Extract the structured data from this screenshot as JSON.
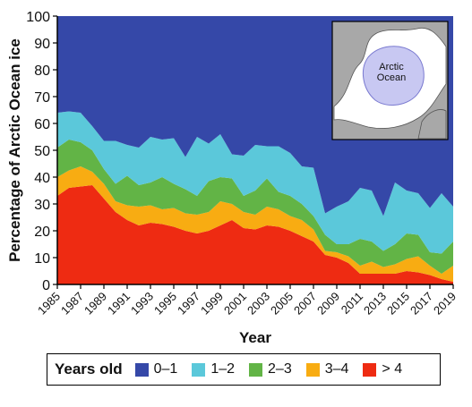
{
  "chart_data": {
    "type": "area",
    "stacked": true,
    "title": "",
    "xlabel": "Year",
    "ylabel": "Percentage of Arctic Ocean ice",
    "xlim": [
      1985,
      2019
    ],
    "ylim": [
      0,
      100
    ],
    "yticks": [
      0,
      10,
      20,
      30,
      40,
      50,
      60,
      70,
      80,
      90,
      100
    ],
    "xticks": [
      1985,
      1987,
      1989,
      1991,
      1993,
      1995,
      1997,
      1999,
      2001,
      2003,
      2005,
      2007,
      2009,
      2011,
      2013,
      2015,
      2017,
      2019
    ],
    "legend_title": "Years old",
    "x": [
      1985,
      1986,
      1987,
      1988,
      1989,
      1990,
      1991,
      1992,
      1993,
      1994,
      1995,
      1996,
      1997,
      1998,
      1999,
      2000,
      2001,
      2002,
      2003,
      2004,
      2005,
      2006,
      2007,
      2008,
      2009,
      2010,
      2011,
      2012,
      2013,
      2014,
      2015,
      2016,
      2017,
      2018,
      2019
    ],
    "series": [
      {
        "name": "> 4",
        "color": "#ee2b12",
        "values": [
          33,
          36,
          36.5,
          37,
          32,
          27,
          24,
          22,
          23,
          22.5,
          21.5,
          20,
          19,
          20,
          22,
          24,
          21,
          20.5,
          22,
          21.5,
          20,
          18,
          16,
          11,
          10,
          8,
          4,
          4,
          4,
          4,
          5,
          4.5,
          3.5,
          2,
          1
        ]
      },
      {
        "name": "3–4",
        "color": "#f8ac12",
        "values": [
          7,
          6.5,
          7.5,
          5,
          5.5,
          4,
          5.5,
          7,
          6.5,
          5.5,
          7,
          6.5,
          7,
          7,
          9,
          6,
          6,
          5.5,
          7,
          6.5,
          5.5,
          6,
          4.5,
          1.5,
          2,
          2.5,
          3,
          4.5,
          2.5,
          3.5,
          4.5,
          6,
          3.5,
          2,
          6
        ]
      },
      {
        "name": "2–3",
        "color": "#62b446",
        "values": [
          11,
          11.5,
          9,
          8,
          5.5,
          6.5,
          11,
          8,
          8.5,
          12,
          9,
          9,
          7,
          11.5,
          9,
          9.5,
          6,
          9,
          10.5,
          6.5,
          7.5,
          6,
          5,
          6,
          3,
          4.5,
          10,
          7.5,
          6,
          7.5,
          9.5,
          8,
          5,
          7.5,
          9
        ]
      },
      {
        "name": "1–2",
        "color": "#5bc8da",
        "values": [
          13,
          10.5,
          11,
          9,
          10.5,
          16,
          11.5,
          14,
          17,
          14,
          17,
          12,
          22,
          14,
          16,
          9,
          15,
          17,
          12,
          17,
          16,
          14,
          18,
          8,
          14,
          16,
          19,
          19,
          13,
          23,
          16,
          15.5,
          16.5,
          22.5,
          13
        ]
      },
      {
        "name": "0–1",
        "color": "#3548a8",
        "values": [
          36,
          35.5,
          36,
          41,
          46.5,
          46.5,
          48,
          49,
          45,
          46,
          45.5,
          52.5,
          45,
          47.5,
          44,
          51.5,
          52,
          48,
          48.5,
          48.5,
          51,
          56,
          56.5,
          73.5,
          71,
          69,
          64,
          65,
          74.5,
          62,
          65,
          66,
          71.5,
          66,
          71
        ]
      }
    ],
    "inset": {
      "label_line1": "Arctic",
      "label_line2": "Ocean",
      "land_color": "#a8a8a8",
      "ocean_color": "#ffffff",
      "ice_color": "#c8c8f2"
    }
  }
}
